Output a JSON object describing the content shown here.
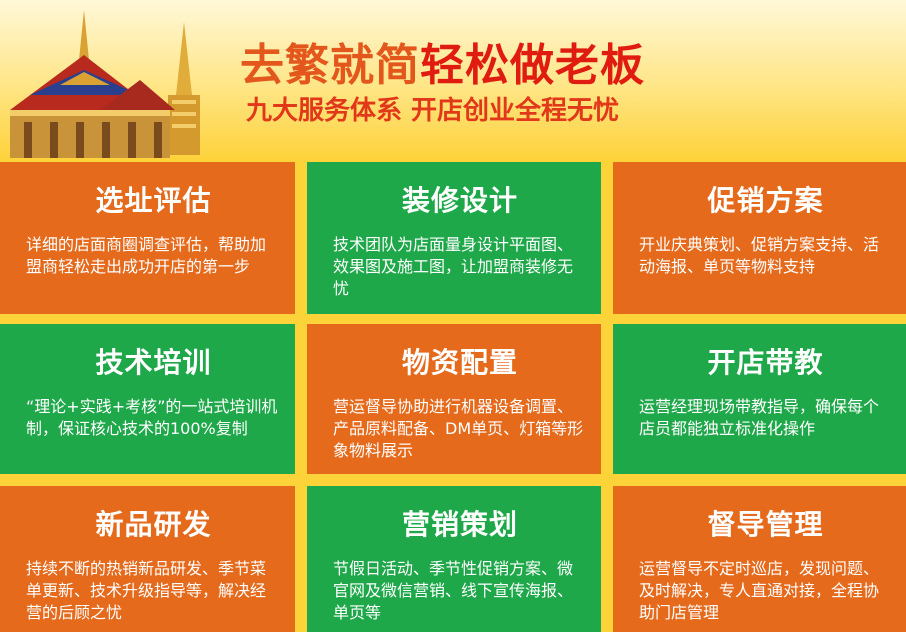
{
  "header": {
    "title_part1": "去繁就简",
    "title_part2": "轻松做老板",
    "subtitle": "九大服务体系 开店创业全程无忧"
  },
  "colors": {
    "orange": "#e56a1c",
    "green": "#1ea84a",
    "background": "#fdd33a",
    "title_red": "#e01b10"
  },
  "cards": [
    {
      "title": "选址评估",
      "text": "详细的店面商圈调查评估，帮助加盟商轻松走出成功开店的第一步",
      "color": "orange"
    },
    {
      "title": "装修设计",
      "text": "技术团队为店面量身设计平面图、效果图及施工图，让加盟商装修无忧",
      "color": "green"
    },
    {
      "title": "促销方案",
      "text": "开业庆典策划、促销方案支持、活动海报、单页等物料支持",
      "color": "orange"
    },
    {
      "title": "技术培训",
      "text": "“理论+实践+考核”的一站式培训机制，保证核心技术的100%复制",
      "color": "green"
    },
    {
      "title": "物资配置",
      "text": "营运督导协助进行机器设备调置、产品原料配备、DM单页、灯箱等形象物料展示",
      "color": "orange"
    },
    {
      "title": "开店带教",
      "text": "运营经理现场带教指导，确保每个店员都能独立标准化操作",
      "color": "green"
    },
    {
      "title": "新品研发",
      "text": "持续不断的热销新品研发、季节菜单更新、技术升级指导等，解决经营的后顾之忧",
      "color": "orange"
    },
    {
      "title": "营销策划",
      "text": "节假日活动、季节性促销方案、微官网及微信营销、线下宣传海报、单页等",
      "color": "green"
    },
    {
      "title": "督导管理",
      "text": "运营督导不定时巡店，发现问题、及时解决，专人直通对接，全程协助门店管理",
      "color": "orange"
    }
  ]
}
